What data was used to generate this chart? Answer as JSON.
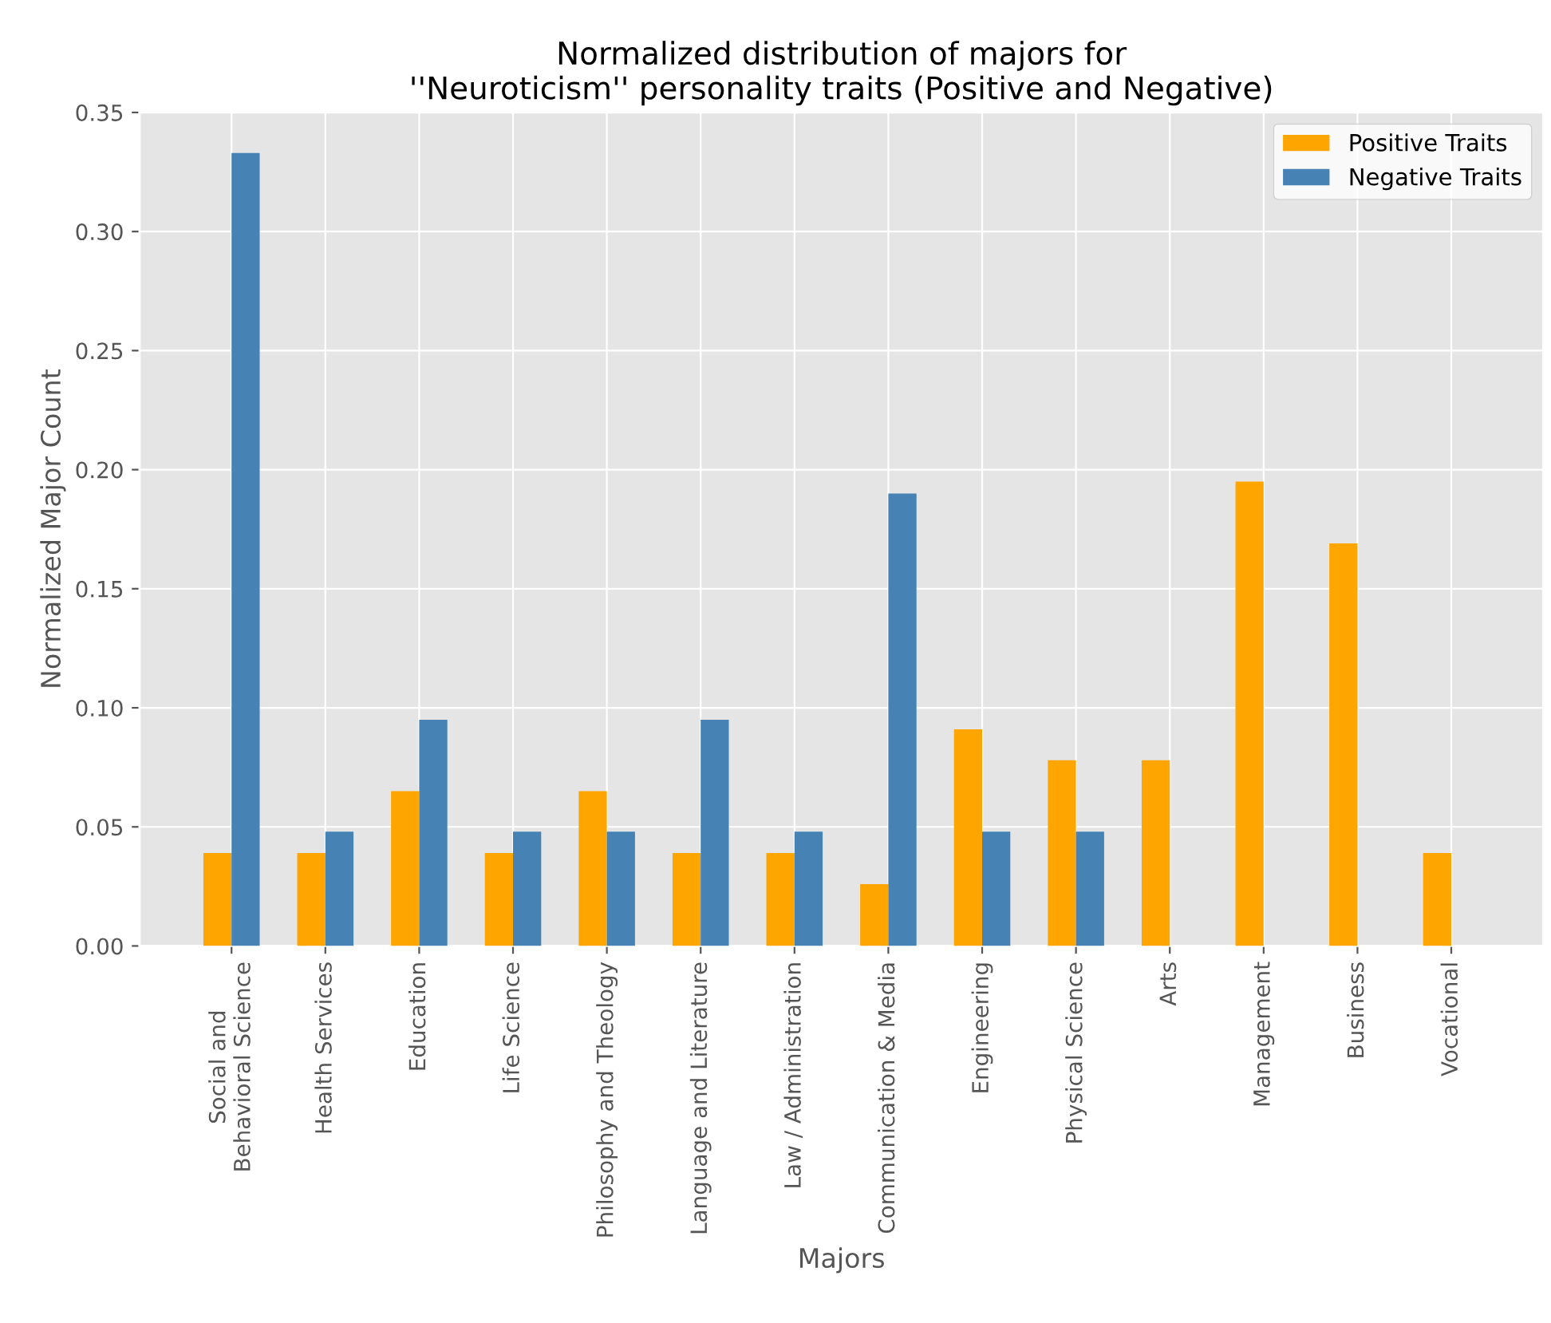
{
  "chart_data": {
    "type": "bar",
    "title": "Normalized distribution of majors for\n''Neuroticism'' personality traits (Positive and Negative)",
    "xlabel": "Majors",
    "ylabel": "Normalized Major Count",
    "categories": [
      "Social and\nBehavioral Science",
      "Health Services",
      "Education",
      "Life Science",
      "Philosophy and Theology",
      "Language and Literature",
      "Law / Administration",
      "Communication & Media",
      "Engineering",
      "Physical Science",
      "Arts",
      "Management",
      "Business",
      "Vocational"
    ],
    "series": [
      {
        "name": "Positive Traits",
        "color": "#ffa500",
        "values": [
          0.039,
          0.039,
          0.065,
          0.039,
          0.065,
          0.039,
          0.039,
          0.026,
          0.091,
          0.078,
          0.078,
          0.195,
          0.169,
          0.039
        ]
      },
      {
        "name": "Negative Traits",
        "color": "#4682b4",
        "values": [
          0.333,
          0.048,
          0.095,
          0.048,
          0.048,
          0.095,
          0.048,
          0.19,
          0.048,
          0.048,
          0,
          0,
          0,
          0
        ]
      }
    ],
    "ylim": [
      0,
      0.35
    ],
    "yticks": [
      {
        "value": 0,
        "label": "0.00"
      },
      {
        "value": 0.05,
        "label": "0.05"
      },
      {
        "value": 0.1,
        "label": "0.10"
      },
      {
        "value": 0.15,
        "label": "0.15"
      },
      {
        "value": 0.2,
        "label": "0.20"
      },
      {
        "value": 0.25,
        "label": "0.25"
      },
      {
        "value": 0.3,
        "label": "0.30"
      },
      {
        "value": 0.35,
        "label": "0.35"
      }
    ],
    "grid": true,
    "legend": "top right"
  }
}
